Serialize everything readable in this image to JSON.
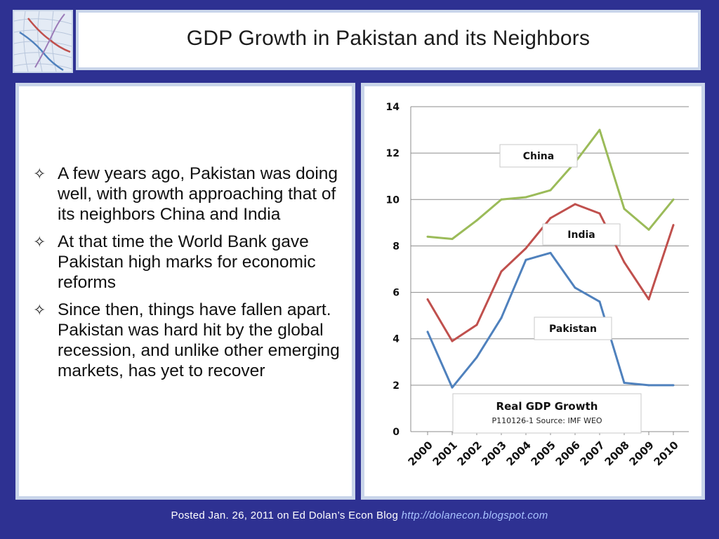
{
  "slide": {
    "title": "GDP Growth in Pakistan and its Neighbors",
    "bullets": [
      "A few years ago, Pakistan was doing well, with growth approaching that of its neighbors China and India",
      "At that time the World Bank gave Pakistan high marks for economic reforms",
      "Since then, things have fallen apart. Pakistan was hard hit by the global recession, and unlike other emerging markets, has yet to recover"
    ],
    "footer": {
      "text": "Posted Jan. 26, 2011 on Ed Dolan’s Econ Blog",
      "link": "http://dolanecon.blogspot.com"
    },
    "colors": {
      "background": "#2e3192",
      "panel_border": "#c9d5ea"
    }
  },
  "chart_data": {
    "type": "line",
    "title": "Real GDP Growth",
    "subtitle": "P110126-1 Source: IMF WEO",
    "categories": [
      "2000",
      "2001",
      "2002",
      "2003",
      "2004",
      "2005",
      "2006",
      "2007",
      "2008",
      "2009",
      "2010"
    ],
    "series": [
      {
        "name": "China",
        "color": "#9bbb59",
        "values": [
          8.4,
          8.3,
          9.1,
          10.0,
          10.1,
          10.4,
          11.6,
          13.0,
          9.6,
          8.7,
          10.0
        ]
      },
      {
        "name": "India",
        "color": "#c0504d",
        "values": [
          5.7,
          3.9,
          4.6,
          6.9,
          7.9,
          9.2,
          9.8,
          9.4,
          7.3,
          5.7,
          8.9
        ]
      },
      {
        "name": "Pakistan",
        "color": "#4f81bd",
        "values": [
          4.3,
          1.9,
          3.2,
          4.9,
          7.4,
          7.7,
          6.2,
          5.6,
          2.1,
          2.0,
          2.0
        ]
      }
    ],
    "ylim": [
      0,
      14
    ],
    "yticks": [
      "0",
      "2",
      "4",
      "6",
      "8",
      "10",
      "12",
      "14"
    ],
    "grid": true,
    "xlabel": "",
    "ylabel": ""
  }
}
